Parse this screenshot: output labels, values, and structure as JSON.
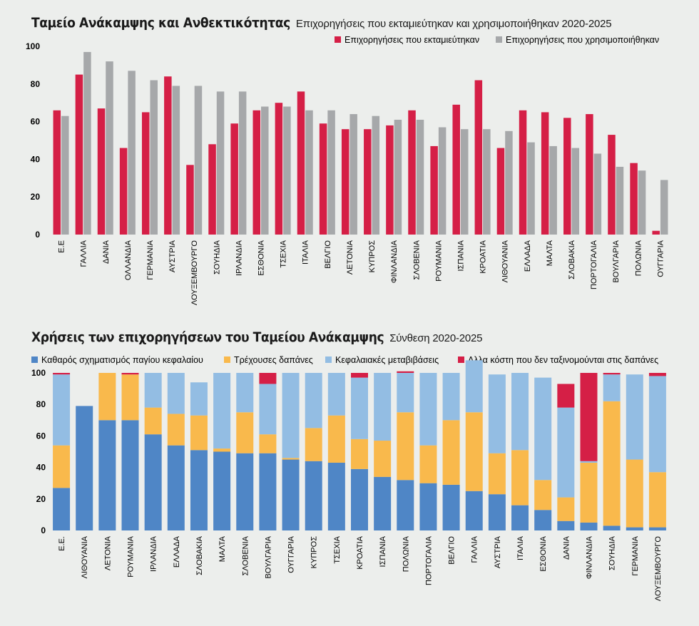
{
  "colors": {
    "red": "#d51f46",
    "gray": "#a6a8aa",
    "dark_blue": "#4f86c6",
    "orange": "#f9b94c",
    "light_blue": "#93bde3",
    "crimson": "#d51f46"
  },
  "top_chart": {
    "title": "Ταμείο Ανάκαμψης και Ανθεκτικότητας",
    "subtitle": "Επιχορηγήσεις που εκταμιεύτηκαν και χρησιμοποιήθηκαν 2020-2025",
    "legend_position": "top-right"
  },
  "bottom_chart": {
    "title": "Χρήσεις των επιχορηγήσεων του Ταμείου Ανάκαμψης",
    "subtitle": "Σύνθεση 2020-2025",
    "legend_position": "top"
  },
  "chart_data": [
    {
      "type": "bar",
      "ylim": [
        0,
        100
      ],
      "yticks": [
        0,
        20,
        40,
        60,
        80,
        100
      ],
      "grid": false,
      "categories": [
        "Ε.Ε",
        "ΓΑΛΛΙΑ",
        "ΔΑΝΙΑ",
        "ΟΛΛΑΝΔΙΑ",
        "ΓΕΡΜΑΝΙΑ",
        "ΑΥΣΤΡΙΑ",
        "ΛΟΥΞΕΜΒΟΥΡΓΟ",
        "ΣΟΥΗΔΙΑ",
        "ΙΡΛΑΝΔΙΑ",
        "ΕΣΘΟΝΙΑ",
        "ΤΣΕΧΙΑ",
        "ΙΤΑΛΙΑ",
        "ΒΕΛΓΙΟ",
        "ΛΕΤΟΝΙΑ",
        "ΚΥΠΡΟΣ",
        "ΦΙΝΛΑΝΔΙΑ",
        "ΣΛΟΒΕΝΙΑ",
        "ΡΟΥΜΑΝΙΑ",
        "ΙΣΠΑΝΙΑ",
        "ΚΡΟΑΤΙΑ",
        "ΛΙΘΟΥΑΝΙΑ",
        "ΕΛΛΑΔΑ",
        "ΜΑΛΤΑ",
        "ΣΛΟΒΑΚΙΑ",
        "ΠΟΡΤΟΓΑΛΙΑ",
        "ΒΟΥΛΓΑΡΙΑ",
        "ΠΟΛΩΝΙΑ",
        "ΟΥΓΓΑΡΙΑ"
      ],
      "series": [
        {
          "name": "Επιχορηγήσεις που εκταμιεύτηκαν",
          "color": "#d51f46",
          "values": [
            66,
            85,
            67,
            46,
            65,
            84,
            37,
            48,
            59,
            66,
            70,
            76,
            59,
            56,
            56,
            58,
            66,
            47,
            69,
            82,
            46,
            66,
            65,
            62,
            64,
            53,
            38,
            2
          ]
        },
        {
          "name": "Επιχορηγήσεις που χρησιμοποιήθηκαν",
          "color": "#a6a8aa",
          "values": [
            63,
            97,
            92,
            87,
            82,
            79,
            79,
            76,
            76,
            68,
            68,
            66,
            66,
            64,
            63,
            61,
            61,
            57,
            56,
            56,
            55,
            49,
            47,
            46,
            43,
            36,
            34,
            29
          ]
        }
      ]
    },
    {
      "type": "bar",
      "stacked": true,
      "ylim": [
        0,
        100
      ],
      "yticks": [
        0,
        20,
        40,
        60,
        80,
        100
      ],
      "grid": false,
      "categories": [
        "Ε.Ε.",
        "ΛΙΘΟΥΑΝΙΑ",
        "ΛΕΤΟΝΙΑ",
        "ΡΟΥΜΑΝΙΑ",
        "ΙΡΛΑΝΔΙΑ",
        "ΕΛΛΑΔΑ",
        "ΣΛΟΒΑΚΙΑ",
        "ΜΑΛΤΑ",
        "ΣΛΟΒΕΝΙΑ",
        "ΒΟΥΛΓΑΡΙΑ",
        "ΟΥΓΓΑΡΙΑ",
        "ΚΥΠΡΟΣ",
        "ΤΣΕΧΙΑ",
        "ΚΡΟΑΤΙΑ",
        "ΙΣΠΑΝΙΑ",
        "ΠΟΛΩΝΙΑ",
        "ΠΟΡΤΟΓΑΛΙΑ",
        "ΒΕΛΓΙΟ",
        "ΓΑΛΛΙΑ",
        "ΑΥΣΤΡΙΑ",
        "ΙΤΑΛΙΑ",
        "ΕΣΘΟΝΙΑ",
        "ΔΑΝΙΑ",
        "ΦΙΝΛΑΝΔΙΑ",
        "ΣΟΥΗΔΙΑ",
        "ΓΕΡΜΑΝΙΑ",
        "ΛΟΥΞΕΜΒΟΥΡΓΟ"
      ],
      "series": [
        {
          "name": "Καθαρός σχηματισμός παγίου κεφαλαίου",
          "color": "#4f86c6",
          "values": [
            27,
            79,
            70,
            70,
            61,
            54,
            51,
            50,
            49,
            49,
            45,
            44,
            43,
            39,
            34,
            32,
            30,
            29,
            25,
            23,
            16,
            13,
            6,
            5,
            3,
            2,
            2
          ]
        },
        {
          "name": "Τρέχουσες δαπάνες",
          "color": "#f9b94c",
          "values": [
            27,
            0,
            30,
            29,
            17,
            20,
            22,
            2,
            26,
            12,
            1,
            21,
            30,
            19,
            23,
            43,
            24,
            41,
            50,
            26,
            35,
            19,
            15,
            38,
            79,
            43,
            35
          ]
        },
        {
          "name": "Κεφαλαιακές μεταβιβάσεις",
          "color": "#93bde3",
          "values": [
            45,
            0,
            0,
            0,
            22,
            26,
            21,
            48,
            25,
            32,
            54,
            35,
            27,
            39,
            43,
            25,
            46,
            30,
            33,
            50,
            49,
            65,
            57,
            1,
            17,
            54,
            61
          ]
        },
        {
          "name": "Αλλα κόστη που δεν ταξινομούνται στις δαπάνες",
          "color": "#d51f46",
          "values": [
            1,
            0,
            0,
            1,
            0,
            0,
            0,
            0,
            0,
            7,
            0,
            0,
            0,
            3,
            0,
            1,
            0,
            0,
            0,
            0,
            0,
            0,
            15,
            56,
            1,
            0,
            2
          ]
        }
      ]
    }
  ]
}
